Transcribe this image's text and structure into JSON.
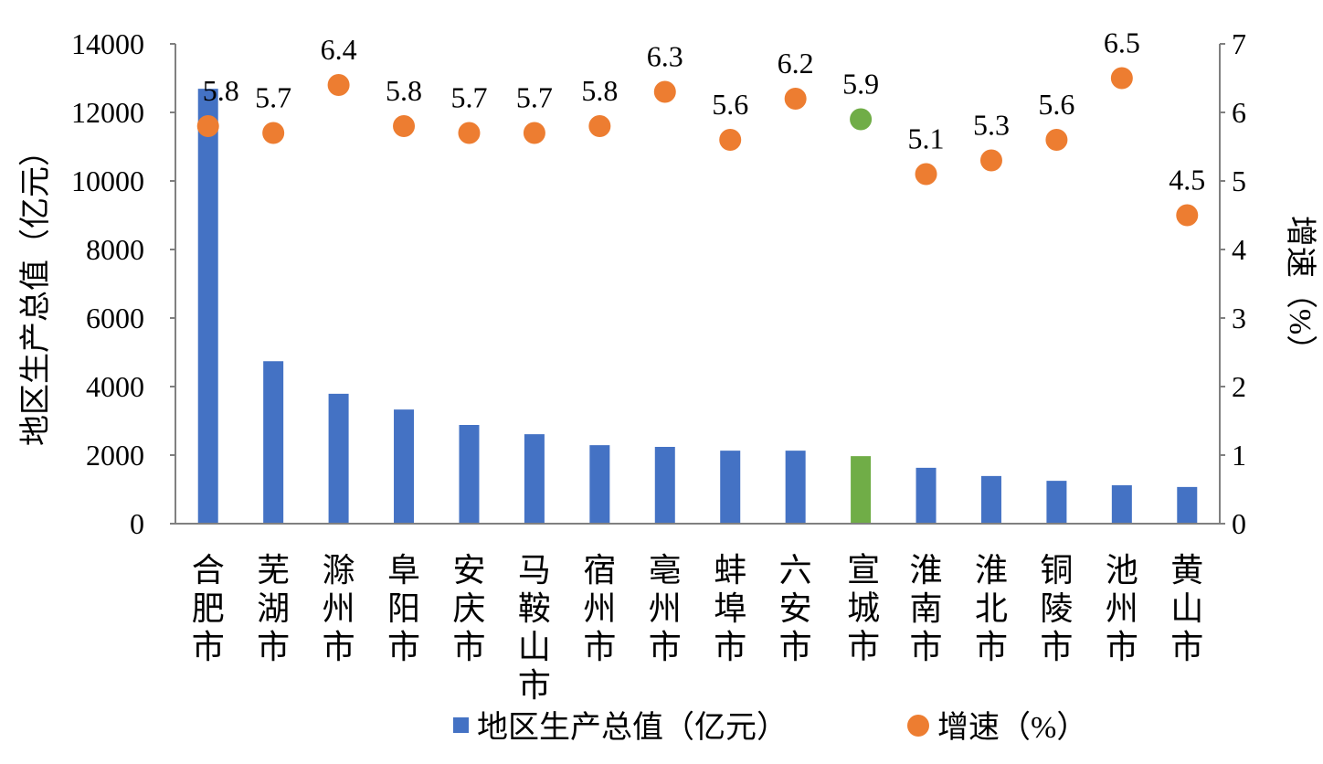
{
  "chart_data": {
    "type": "bar+scatter",
    "categories": [
      "合肥市",
      "芜湖市",
      "滁州市",
      "阜阳市",
      "安庆市",
      "马鞍山市",
      "宿州市",
      "亳州市",
      "蚌埠市",
      "六安市",
      "宣城市",
      "淮南市",
      "淮北市",
      "铜陵市",
      "池州市",
      "黄山市"
    ],
    "series": [
      {
        "name": "地区生产总值（亿元）",
        "type": "bar",
        "axis": "left",
        "values": [
          12690,
          4740,
          3790,
          3330,
          2880,
          2610,
          2290,
          2240,
          2130,
          2130,
          1970,
          1630,
          1390,
          1250,
          1120,
          1070
        ]
      },
      {
        "name": "增速（%）",
        "type": "scatter",
        "axis": "right",
        "values": [
          5.8,
          5.7,
          6.4,
          5.8,
          5.7,
          5.7,
          5.8,
          6.3,
          5.6,
          6.2,
          5.9,
          5.1,
          5.3,
          5.6,
          6.5,
          4.5
        ],
        "data_labels": [
          "5.8",
          "5.7",
          "6.4",
          "5.8",
          "5.7",
          "5.7",
          "5.8",
          "6.3",
          "5.6",
          "6.2",
          "5.9",
          "5.1",
          "5.3",
          "5.6",
          "6.5",
          "4.5"
        ]
      }
    ],
    "highlight_category": "宣城市",
    "ylabel": "地区生产总值（亿元）",
    "y2label": "增速（%）",
    "ylim": [
      0,
      14000
    ],
    "y2lim": [
      0,
      7
    ],
    "yticks": [
      "0",
      "2000",
      "4000",
      "6000",
      "8000",
      "10000",
      "12000",
      "14000"
    ],
    "y2ticks": [
      "0",
      "1",
      "2",
      "3",
      "4",
      "5",
      "6",
      "7"
    ],
    "grid": false,
    "legend": {
      "placement": "bottom",
      "entries": [
        "地区生产总值（亿元）",
        "增速（%）"
      ]
    },
    "colors": {
      "bar": "#4472C4",
      "point": "#ED7D31",
      "highlight": "#70AD47",
      "axis": "#808080"
    }
  }
}
